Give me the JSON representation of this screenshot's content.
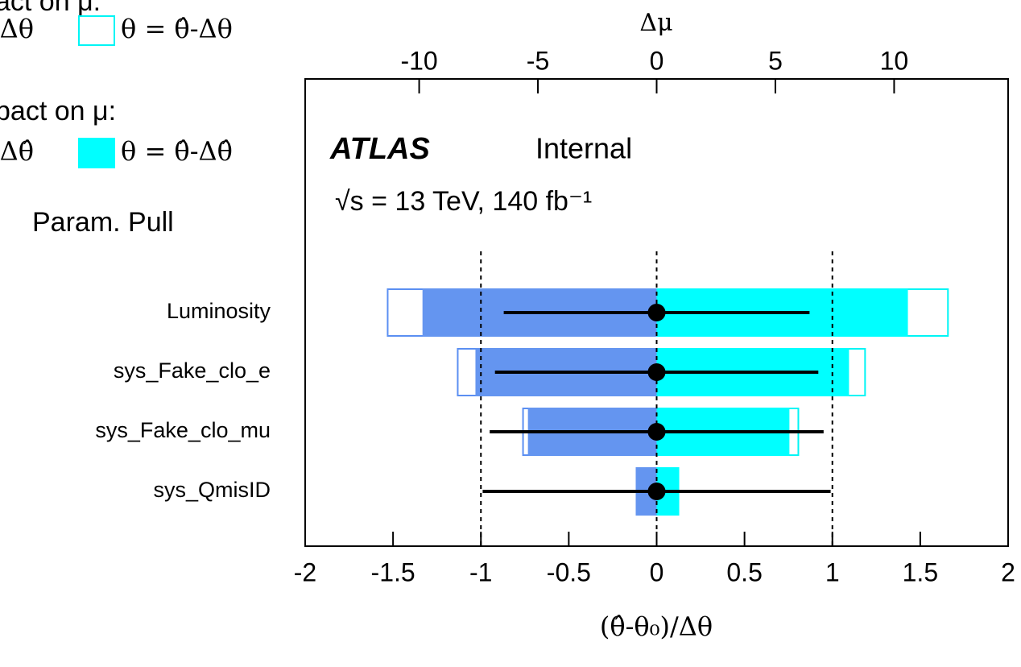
{
  "chart_data": {
    "type": "ranking",
    "x2label": "Δμ",
    "xlabel": "(θ̂-θ₀)/Δθ",
    "experiment": "ATLAS",
    "status": "Internal",
    "energy_lumi": "√s = 13 TeV, 140 fb⁻¹",
    "legend_headers": [
      "act on  μ:",
      "pact on  μ:"
    ],
    "pull_name": "Param. Pull",
    "categories": [
      "Luminosity",
      "sys_Fake_clo_e",
      "sys_Fake_clo_mu",
      "sys_QmisID"
    ],
    "xlim": [
      -2,
      2
    ],
    "xticks": [
      -2,
      -1.5,
      -1,
      -0.5,
      0,
      0.5,
      1,
      1.5,
      2
    ],
    "x2lim": [
      -14.8,
      14.8
    ],
    "x2ticks": [
      -10,
      -5,
      0,
      5,
      10
    ],
    "dashed_lines": [
      -1,
      0,
      1
    ],
    "series": [
      {
        "name": "Δθ",
        "color": "#5b8ff2",
        "filled": false,
        "values": [
          -11.36,
          -8.41,
          -5.66,
          -0.88
        ]
      },
      {
        "name": "θ = θ̂-Δθ",
        "color": "#00f5f5",
        "filled": false,
        "values": [
          12.3,
          8.81,
          6.0,
          0.95
        ]
      },
      {
        "name": "Δθ̂",
        "color": "#6495f0",
        "filled": true,
        "values": [
          -9.86,
          -7.63,
          -5.42,
          -0.88
        ]
      },
      {
        "name": "θ = θ̂-Δθ̂",
        "color": "#00ffff",
        "filled": true,
        "values": [
          10.58,
          8.1,
          5.59,
          0.95
        ]
      }
    ],
    "pulls": [
      0,
      0,
      0,
      0
    ],
    "pull_errors": [
      0.87,
      0.92,
      0.95,
      0.99
    ]
  }
}
